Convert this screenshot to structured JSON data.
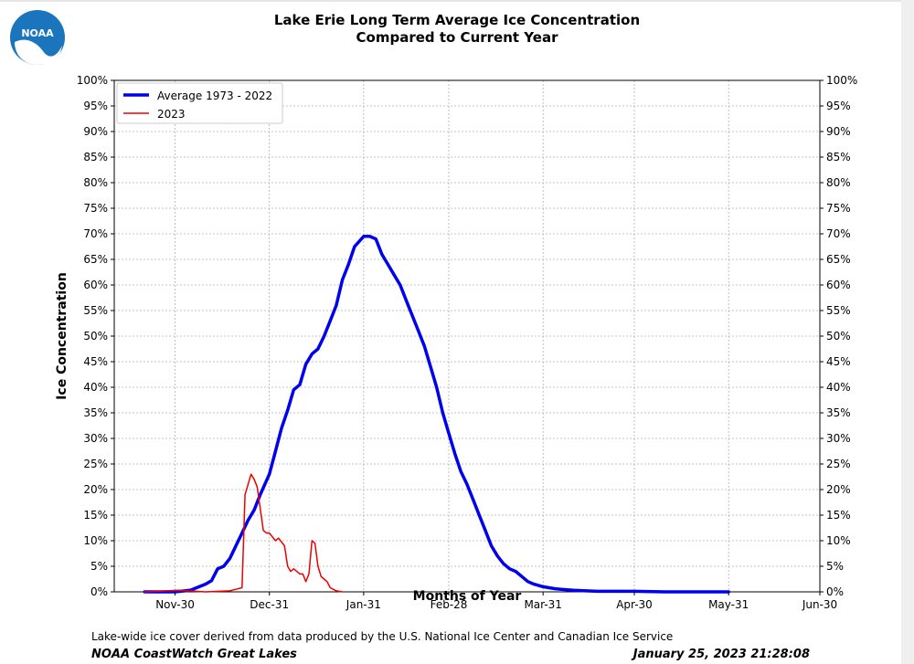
{
  "header": {
    "title_line1": "Lake Erie Long Term Average Ice Concentration",
    "title_line2": "Compared to Current Year",
    "logo_text": "NOAA"
  },
  "footer": {
    "source": "Lake-wide ice cover derived from data produced by the U.S. National Ice Center and Canadian Ice Service",
    "org": "NOAA CoastWatch Great Lakes",
    "datetime": "January 25, 2023 21:28:08"
  },
  "colors": {
    "average": "#0000ee",
    "current": "#ee0000",
    "grid": "#b0b0b0",
    "logo_blue": "#1b75bc"
  },
  "chart_data": {
    "type": "line",
    "title": "Lake Erie Long Term Average Ice Concentration Compared to Current Year",
    "xlabel": "Months of Year",
    "ylabel": "Ice Concentration",
    "x_ticks": [
      "Nov-30",
      "Dec-31",
      "Jan-31",
      "Feb-28",
      "Mar-31",
      "Apr-30",
      "May-31",
      "Jun-30"
    ],
    "x_range": [
      "Nov-10",
      "Jun-30"
    ],
    "ylim": [
      0,
      100
    ],
    "y_ticks": [
      "0%",
      "5%",
      "10%",
      "15%",
      "20%",
      "25%",
      "30%",
      "35%",
      "40%",
      "45%",
      "50%",
      "55%",
      "60%",
      "65%",
      "70%",
      "75%",
      "80%",
      "85%",
      "90%",
      "95%",
      "100%"
    ],
    "grid": true,
    "legend_position": "top-left",
    "series": [
      {
        "name": "Average 1973 - 2022",
        "color": "#0000ee",
        "x": [
          "Nov-20",
          "Nov-30",
          "Dec-05",
          "Dec-10",
          "Dec-12",
          "Dec-14",
          "Dec-16",
          "Dec-18",
          "Dec-20",
          "Dec-22",
          "Dec-24",
          "Dec-26",
          "Dec-28",
          "Dec-31",
          "Jan-02",
          "Jan-04",
          "Jan-06",
          "Jan-08",
          "Jan-10",
          "Jan-12",
          "Jan-14",
          "Jan-16",
          "Jan-18",
          "Jan-20",
          "Jan-22",
          "Jan-24",
          "Jan-26",
          "Jan-28",
          "Jan-31",
          "Feb-02",
          "Feb-04",
          "Feb-06",
          "Feb-08",
          "Feb-10",
          "Feb-12",
          "Feb-14",
          "Feb-16",
          "Feb-18",
          "Feb-20",
          "Feb-22",
          "Feb-24",
          "Feb-26",
          "Feb-28",
          "Mar-02",
          "Mar-04",
          "Mar-06",
          "Mar-08",
          "Mar-10",
          "Mar-12",
          "Mar-14",
          "Mar-16",
          "Mar-18",
          "Mar-20",
          "Mar-22",
          "Mar-24",
          "Mar-26",
          "Mar-28",
          "Mar-31",
          "Apr-02",
          "Apr-04",
          "Apr-06",
          "Apr-08",
          "Apr-10",
          "Apr-14",
          "Apr-18",
          "Apr-22",
          "Apr-26",
          "Apr-30",
          "May-10",
          "May-20",
          "May-31"
        ],
        "values": [
          0,
          0,
          0.3,
          1.5,
          2.2,
          4.5,
          5.0,
          6.5,
          9.0,
          11.5,
          14.0,
          16.0,
          19.0,
          23.0,
          27.5,
          32.0,
          35.5,
          39.5,
          40.5,
          44.5,
          46.5,
          47.5,
          50.0,
          53.0,
          56.0,
          61.0,
          64.0,
          67.5,
          69.5,
          69.5,
          69.0,
          66.0,
          64.0,
          62.0,
          60.0,
          57.0,
          54.0,
          51.0,
          48.0,
          44.0,
          40.0,
          35.0,
          31.0,
          27.0,
          23.5,
          21.0,
          18.0,
          15.0,
          12.0,
          9.0,
          7.0,
          5.5,
          4.5,
          4.0,
          3.0,
          2.0,
          1.5,
          1.0,
          0.8,
          0.6,
          0.5,
          0.4,
          0.3,
          0.2,
          0.1,
          0.1,
          0.1,
          0.1,
          0,
          0,
          0
        ]
      },
      {
        "name": "2023",
        "color": "#ee0000",
        "x": [
          "Nov-20",
          "Dec-01",
          "Dec-10",
          "Dec-18",
          "Dec-20",
          "Dec-22",
          "Dec-23",
          "Dec-25",
          "Dec-26",
          "Dec-27",
          "Dec-29",
          "Dec-30",
          "Dec-31",
          "Jan-02",
          "Jan-03",
          "Jan-05",
          "Jan-06",
          "Jan-07",
          "Jan-08",
          "Jan-09",
          "Jan-10",
          "Jan-11",
          "Jan-12",
          "Jan-13",
          "Jan-14",
          "Jan-15",
          "Jan-16",
          "Jan-17",
          "Jan-18",
          "Jan-19",
          "Jan-20",
          "Jan-21",
          "Jan-22",
          "Jan-24"
        ],
        "values": [
          0,
          0.3,
          0,
          0.2,
          0.5,
          0.8,
          19.0,
          23.0,
          22.0,
          20.5,
          12.0,
          11.5,
          11.5,
          10.0,
          10.5,
          9.0,
          5.0,
          4.0,
          4.5,
          4.0,
          3.5,
          3.5,
          2.0,
          3.5,
          10.0,
          9.5,
          5.0,
          3.0,
          2.5,
          2.0,
          0.8,
          0.5,
          0.2,
          0
        ]
      }
    ]
  }
}
